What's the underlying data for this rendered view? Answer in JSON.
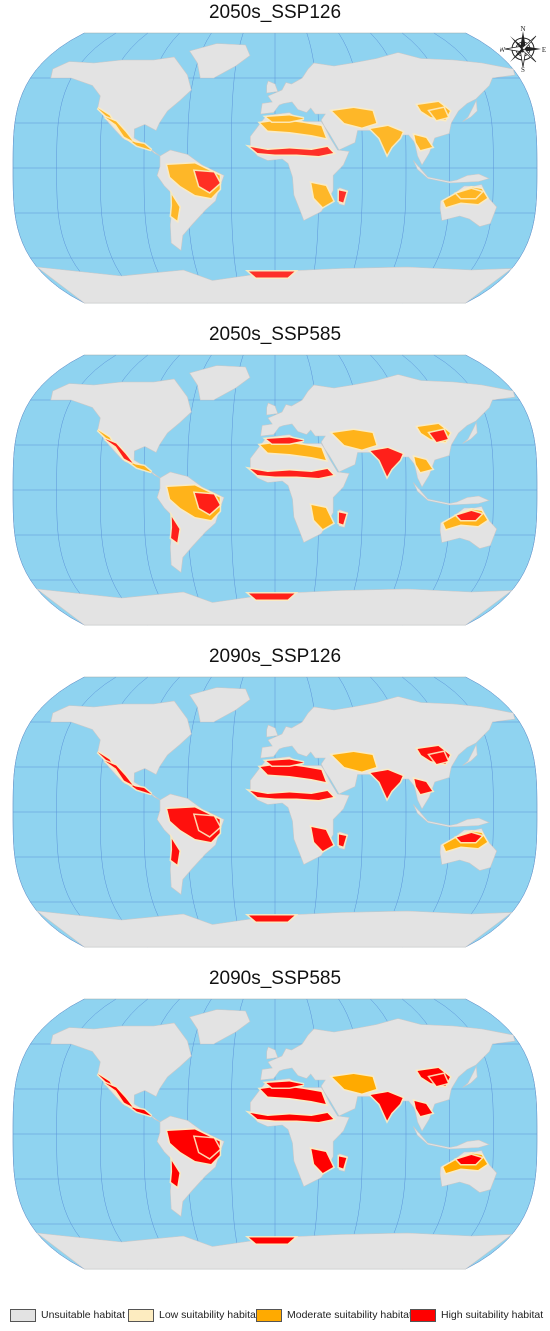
{
  "panels": [
    {
      "title": "2050s_SSP126",
      "scenario": "2050s_SSP126",
      "intensity": 0.55
    },
    {
      "title": "2050s_SSP585",
      "scenario": "2050s_SSP585",
      "intensity": 0.7
    },
    {
      "title": "2090s_SSP126",
      "scenario": "2090s_SSP126",
      "intensity": 0.85
    },
    {
      "title": "2090s_SSP585",
      "scenario": "2090s_SSP585",
      "intensity": 1.0
    }
  ],
  "compass": {
    "n": "N",
    "s": "S",
    "e": "E",
    "w": "W"
  },
  "legend": [
    {
      "label": "Unsuitable habitat",
      "color": "#e3e3e3"
    },
    {
      "label": "Low suitability habitat",
      "color": "#fdecc0"
    },
    {
      "label": "Moderate suitability habitat",
      "color": "#ffaa00"
    },
    {
      "label": "High suitability habitat",
      "color": "#ff0000"
    }
  ],
  "colors": {
    "ocean": "#8fd3f0",
    "land": "#e3e3e3",
    "grid": "#5b93d9",
    "border": "#c8c8c8"
  }
}
